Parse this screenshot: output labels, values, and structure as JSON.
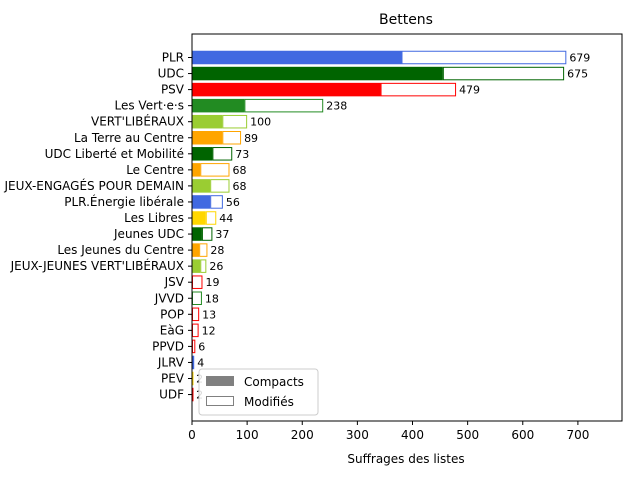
{
  "chart_data": {
    "type": "bar",
    "orientation": "horizontal",
    "stacked": true,
    "title": "Bettens",
    "xlabel": "Suffrages des listes",
    "ylabel": "",
    "xlim": [
      0,
      780
    ],
    "xticks": [
      0,
      100,
      200,
      300,
      400,
      500,
      600,
      700
    ],
    "grid": false,
    "legend": {
      "placement": "lower-left",
      "entries": [
        {
          "name": "Compacts",
          "style": "filled",
          "color": "#808080"
        },
        {
          "name": "Modifiés",
          "style": "outline",
          "color": "#808080"
        }
      ]
    },
    "categories": [
      "PLR",
      "UDC",
      "PSV",
      "Les Vert·e·s",
      "VERT'LIBÉRAUX",
      "La Terre au Centre",
      "UDC Liberté et Mobilité",
      "Le Centre",
      "JEUX-ENGAGÉS POUR DEMAIN",
      "PLR.Énergie libérale",
      "Les Libres",
      "Jeunes UDC",
      "Les Jeunes du Centre",
      "JEUX-JEUNES VERT'LIBÉRAUX",
      "JSV",
      "JVVD",
      "POP",
      "EàG",
      "PPVD",
      "JLRV",
      "PEV",
      "UDF"
    ],
    "colors": [
      "#4169e1",
      "#006400",
      "#ff0000",
      "#228b22",
      "#9acd32",
      "#ffa500",
      "#006400",
      "#ffa500",
      "#9acd32",
      "#4169e1",
      "#ffd700",
      "#006400",
      "#ffa500",
      "#9acd32",
      "#ff0000",
      "#228b22",
      "#ff0000",
      "#ff0000",
      "#ff0000",
      "#4169e1",
      "#ffd700",
      "#ff0000"
    ],
    "series": [
      {
        "name": "Compacts",
        "values": [
          380,
          455,
          342,
          95,
          55,
          55,
          37,
          15,
          33,
          33,
          25,
          18,
          13,
          15,
          0,
          0,
          0,
          0,
          0,
          4,
          0,
          0
        ]
      },
      {
        "name": "Modifiés",
        "values": [
          299,
          220,
          137,
          143,
          45,
          34,
          36,
          53,
          35,
          23,
          19,
          19,
          15,
          11,
          19,
          18,
          13,
          12,
          6,
          0,
          2,
          2
        ]
      }
    ],
    "totals": [
      679,
      675,
      479,
      238,
      100,
      89,
      73,
      68,
      68,
      56,
      44,
      37,
      28,
      26,
      19,
      18,
      13,
      12,
      6,
      4,
      2,
      2
    ]
  }
}
